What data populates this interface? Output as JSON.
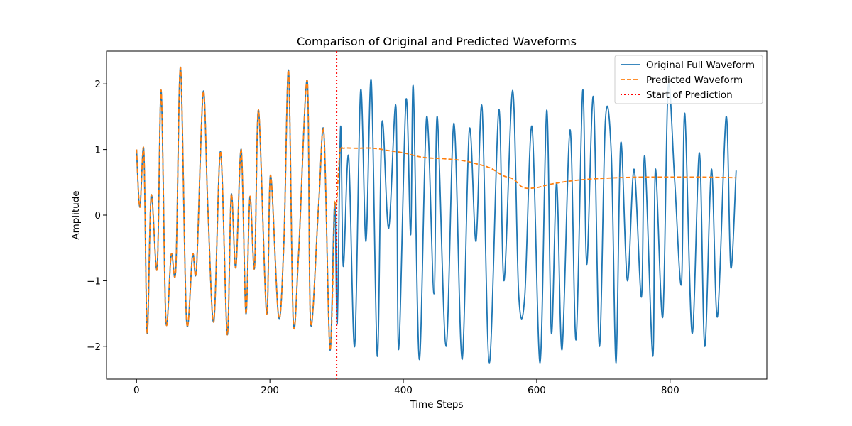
{
  "chart_data": {
    "type": "line",
    "title": "Comparison of Original and Predicted Waveforms",
    "xlabel": "Time Steps",
    "ylabel": "Amplitude",
    "xlim": [
      -45,
      945
    ],
    "ylim": [
      -2.5,
      2.5
    ],
    "xticks": [
      0,
      200,
      400,
      600,
      800
    ],
    "xtick_labels": [
      "0",
      "200",
      "400",
      "600",
      "800"
    ],
    "yticks": [
      -2,
      -1,
      0,
      1,
      2
    ],
    "ytick_labels": [
      "−2",
      "−1",
      "0",
      "1",
      "2"
    ],
    "grid": false,
    "legend_position": "top-right",
    "series": [
      {
        "name": "Original Full Waveform",
        "color": "#1f77b4",
        "style": "solid",
        "x": [
          0,
          5,
          11,
          16,
          22,
          31,
          37,
          44,
          52,
          59,
          66,
          75,
          84,
          90,
          100,
          107,
          116,
          126,
          136,
          142,
          149,
          157,
          164,
          170,
          177,
          183,
          195,
          201,
          213,
          221,
          228,
          235,
          243,
          256,
          261,
          273,
          281,
          290,
          297,
          301,
          306,
          310,
          318,
          327,
          336,
          344,
          352,
          361,
          368,
          378,
          389,
          393,
          404,
          411,
          415,
          424,
          435,
          446,
          451,
          464,
          476,
          488,
          499,
          509,
          518,
          529,
          543,
          551,
          564,
          573,
          582,
          593,
          605,
          615,
          622,
          630,
          638,
          650,
          659,
          669,
          675,
          685,
          694,
          703,
          712,
          719,
          726,
          736,
          746,
          757,
          762,
          774,
          778,
          789,
          797,
          807,
          817,
          822,
          833,
          844,
          852,
          862,
          871,
          884,
          891,
          899
        ],
        "y": [
          1.0,
          0.12,
          0.98,
          -1.8,
          0.3,
          -0.8,
          1.9,
          -1.6,
          -0.6,
          -0.8,
          2.25,
          -1.6,
          -0.6,
          -0.8,
          1.88,
          0.1,
          -1.62,
          0.97,
          -1.82,
          0.31,
          -0.8,
          1.0,
          -1.5,
          0.28,
          -0.8,
          1.6,
          -1.5,
          0.61,
          -1.55,
          -0.4,
          2.2,
          -1.6,
          -0.6,
          2.05,
          -1.65,
          0.15,
          1.25,
          -2.05,
          0.2,
          -1.65,
          1.35,
          -0.78,
          0.9,
          -2.0,
          1.9,
          -0.4,
          2.05,
          -2.15,
          1.4,
          -0.2,
          1.65,
          -2.05,
          1.75,
          -0.3,
          1.95,
          -2.2,
          1.5,
          -1.2,
          1.5,
          -2.0,
          1.4,
          -2.2,
          1.3,
          -0.4,
          1.65,
          -2.25,
          1.6,
          -1.0,
          1.9,
          -1.2,
          -1.25,
          1.35,
          -2.25,
          1.6,
          -1.8,
          0.5,
          -2.05,
          1.3,
          -1.9,
          1.9,
          -0.75,
          1.8,
          -2.0,
          1.45,
          0.9,
          -2.25,
          1.1,
          -1.0,
          0.7,
          -1.25,
          0.9,
          -2.15,
          0.7,
          -1.55,
          1.95,
          0.5,
          -1.05,
          1.55,
          -1.8,
          0.95,
          -2.0,
          0.7,
          -1.55,
          1.5,
          -0.8,
          0.68
        ]
      },
      {
        "name": "Predicted Waveform",
        "color": "#ff7f0e",
        "style": "dashed",
        "x": [
          300,
          305,
          310,
          330,
          355,
          380,
          400,
          430,
          460,
          490,
          510,
          530,
          550,
          565,
          580,
          600,
          620,
          650,
          680,
          720,
          760,
          800,
          850,
          899
        ],
        "y": [
          0.15,
          0.97,
          1.02,
          1.02,
          1.02,
          0.98,
          0.95,
          0.88,
          0.86,
          0.83,
          0.78,
          0.72,
          0.6,
          0.55,
          0.42,
          0.42,
          0.47,
          0.52,
          0.55,
          0.57,
          0.58,
          0.58,
          0.58,
          0.57
        ]
      },
      {
        "name": "Start of Prediction",
        "color": "#ff0000",
        "style": "dotted",
        "x_value": 300
      }
    ]
  }
}
